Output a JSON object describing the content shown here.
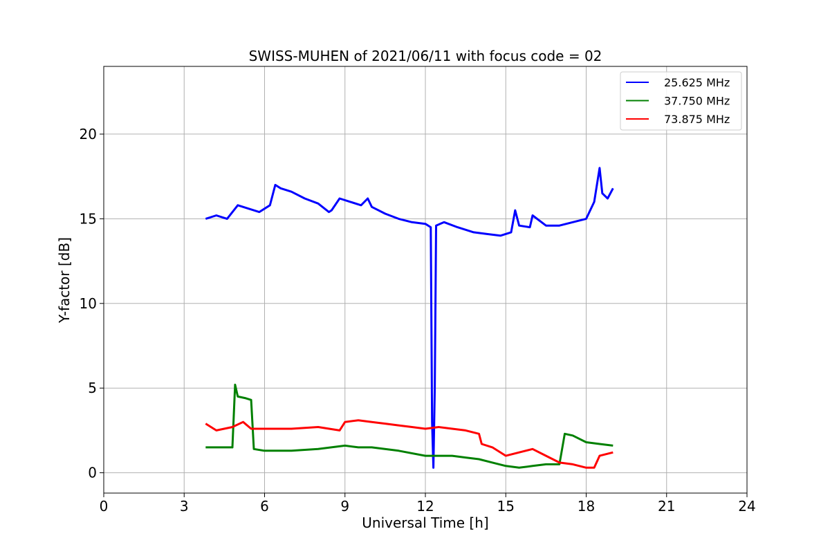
{
  "chart_data": {
    "type": "line",
    "title": "SWISS-MUHEN of 2021/06/11 with focus code = 02",
    "xlabel": "Universal Time [h]",
    "ylabel": "Y-factor [dB]",
    "xlim": [
      0,
      24
    ],
    "ylim": [
      -1.2,
      24
    ],
    "xticks": [
      0,
      3,
      6,
      9,
      12,
      15,
      18,
      21,
      24
    ],
    "yticks": [
      0,
      5,
      10,
      15,
      20
    ],
    "grid": true,
    "legend_position": "top-right",
    "series": [
      {
        "name": "25.625 MHz",
        "color": "#0000ff",
        "x": [
          3.8,
          4.2,
          4.6,
          5.0,
          5.4,
          5.8,
          6.2,
          6.4,
          6.6,
          7.0,
          7.5,
          8.0,
          8.4,
          8.5,
          8.8,
          9.2,
          9.6,
          9.85,
          10.0,
          10.5,
          11.0,
          11.5,
          12.0,
          12.2,
          12.25,
          12.3,
          12.35,
          12.4,
          12.7,
          13.2,
          13.8,
          14.3,
          14.8,
          15.2,
          15.35,
          15.5,
          15.9,
          16.0,
          16.5,
          17.0,
          17.5,
          18.0,
          18.3,
          18.5,
          18.6,
          18.8,
          19.0
        ],
        "y": [
          15.0,
          15.2,
          15.0,
          15.8,
          15.6,
          15.4,
          15.8,
          17.0,
          16.8,
          16.6,
          16.2,
          15.9,
          15.4,
          15.5,
          16.2,
          16.0,
          15.8,
          16.2,
          15.7,
          15.3,
          15.0,
          14.8,
          14.7,
          14.5,
          3.0,
          0.3,
          5.0,
          14.6,
          14.8,
          14.5,
          14.2,
          14.1,
          14.0,
          14.2,
          15.5,
          14.6,
          14.5,
          15.2,
          14.6,
          14.6,
          14.8,
          15.0,
          16.0,
          18.0,
          16.5,
          16.2,
          16.8
        ]
      },
      {
        "name": "37.750 MHz",
        "color": "#008000",
        "x": [
          3.8,
          4.3,
          4.8,
          4.9,
          5.0,
          5.3,
          5.5,
          5.6,
          6.0,
          7.0,
          8.0,
          9.0,
          9.5,
          10.0,
          11.0,
          12.0,
          12.5,
          13.0,
          13.5,
          14.0,
          14.5,
          15.0,
          15.5,
          16.0,
          16.5,
          17.0,
          17.2,
          17.5,
          18.0,
          18.5,
          19.0
        ],
        "y": [
          1.5,
          1.5,
          1.5,
          5.2,
          4.5,
          4.4,
          4.3,
          1.4,
          1.3,
          1.3,
          1.4,
          1.6,
          1.5,
          1.5,
          1.3,
          1.0,
          1.0,
          1.0,
          0.9,
          0.8,
          0.6,
          0.4,
          0.3,
          0.4,
          0.5,
          0.5,
          2.3,
          2.2,
          1.8,
          1.7,
          1.6
        ]
      },
      {
        "name": "73.875 MHz",
        "color": "#ff0000",
        "x": [
          3.8,
          4.2,
          4.8,
          5.2,
          5.5,
          6.0,
          7.0,
          8.0,
          8.8,
          9.0,
          9.5,
          10.0,
          10.5,
          11.0,
          11.5,
          12.0,
          12.5,
          13.0,
          13.5,
          14.0,
          14.1,
          14.5,
          15.0,
          15.5,
          16.0,
          16.5,
          17.0,
          17.5,
          18.0,
          18.3,
          18.5,
          19.0
        ],
        "y": [
          2.9,
          2.5,
          2.7,
          3.0,
          2.6,
          2.6,
          2.6,
          2.7,
          2.5,
          3.0,
          3.1,
          3.0,
          2.9,
          2.8,
          2.7,
          2.6,
          2.7,
          2.6,
          2.5,
          2.3,
          1.7,
          1.5,
          1.0,
          1.2,
          1.4,
          1.0,
          0.6,
          0.5,
          0.3,
          0.3,
          1.0,
          1.2
        ]
      }
    ]
  }
}
